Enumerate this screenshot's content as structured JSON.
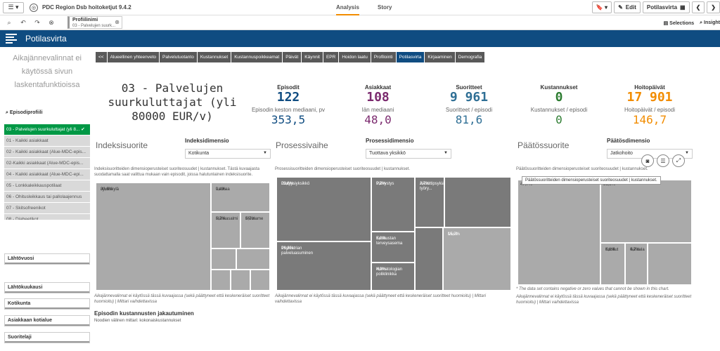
{
  "app": {
    "title": "PDC Region Dsb hoitoketjut 9.4.2"
  },
  "nav": {
    "analysis": "Analysis",
    "story": "Story"
  },
  "toolbar": {
    "edit": "Edit",
    "sheet": "Potilasvirta",
    "selections": "Selections",
    "insights": "Insight"
  },
  "selection_chip": {
    "title": "Profiilinimi",
    "value": "03 - Palvelujen suurk..."
  },
  "sheet_title": "Potilasvirta",
  "left": {
    "note": "Aikajännevalinnat ei käytössä sivun laskentafunktioissa",
    "filter_title": "Episodiprofiili",
    "filter_items": [
      "03 - Palvelujen suurkuluttajat (yli 8...",
      "01 - Kaikki asiakkaat",
      "02 - Kaikki asiakkaat (Alue-MDC-epis...",
      "02-Kaikki asiakkaat (Alue-MDC-epis...",
      "04 - Kaikki asiakkaat (Alue-MDC-epi...",
      "05 - Lonkkaleikkauspotilaat",
      "06 - Ohitusleikkaus tai pallolaajennus",
      "07 - Skitsofreenikot",
      "08 - Diabeetikot"
    ],
    "dropdowns": [
      "Lähtövuosi",
      "Lähtökuukausi",
      "Kotikunta",
      "Asiakkaan kotialue",
      "Suoritelaji"
    ]
  },
  "tabs": [
    "<<",
    "Alueellinen yhteenveto",
    "Palvelutuotanto",
    "Kustannukset",
    "Kustannuspoikkeamat",
    "Päivät",
    "Käynnit",
    "EPR",
    "Hoidon laatu",
    "Profilointi",
    "Potilasvirta",
    "Kirjaaminen",
    "Demografia"
  ],
  "active_tab": "Potilasvirta",
  "profile_title": "03 - Palvelujen suurkuluttajat (yli 80000 EUR/v)",
  "kpis": {
    "episodit": {
      "label": "Episodit",
      "value": "122",
      "color": "#0f4c81"
    },
    "asiakkaat": {
      "label": "Asiakkaat",
      "value": "108",
      "color": "#7b2a6e"
    },
    "suoritteet": {
      "label": "Suoritteet",
      "value": "9 961",
      "color": "#2f6f95"
    },
    "kustannukset": {
      "label": "Kustannukset",
      "value": "0",
      "color": "#2e7d32"
    },
    "hoitopaivat": {
      "label": "Hoitopäivät",
      "value": "17 901",
      "color": "#f28c00"
    },
    "mediaani_label": "Episodin keston mediaani, pv",
    "mediaani_value": "353,5",
    "ika_label": "Iän mediaani",
    "ika_value": "48,0",
    "suor_ep_label": "Suoritteet / episodi",
    "suor_ep_value": "81,6",
    "kust_ep_label": "Kustannukset / episodi",
    "kust_ep_value": "0",
    "hp_ep_label": "Hoitopäivät / episodi",
    "hp_ep_value": "146,7"
  },
  "sections": {
    "index": {
      "title": "Indeksisuorite",
      "dim_label": "Indeksidimensio",
      "dim_value": "Kotikunta",
      "desc": "Indeksisuoritteiden dimensioperusteiset suoriteosuudet | kustannukset. Tästä kuvaajasta suodattamalla saat valittua mukaan vain episodit, joissa halutunlainen indeksisuorite.",
      "note": "Aikajännevalinnat ei käytössä tässä kuvaajassa (sekä päättyneet että keskeneräiset suoritteet huomioitu) | Mittari vaihdettavissa"
    },
    "process": {
      "title": "Prosessivaihe",
      "dim_label": "Prosessidimensio",
      "dim_value": "Tuottava yksikkö",
      "desc": "Prosessisuoritteiden dimensioperusteiset suoriteosuudet | kustannukset.",
      "note": "Aikajännevalinnat ei käytössä tässä kuvaajassa (sekä päättyneet että keskeneräiset suoritteet huomioitu) | Mittari vaihdettavissa"
    },
    "end": {
      "title": "Päätössuorite",
      "dim_label": "Päätösdimensio",
      "dim_value": "Jatkohoito",
      "desc": "Päätössuoritteiden dimensioperusteiset suoriteosuudet | kustannukset.",
      "tooltip": "Päätössuoritteiden dimensioperusteiset suoriteosuudet | kustannukset.",
      "star_note": "* The data set contains negative or zero values that cannot be shown in this chart.",
      "note": "Aikajännevalinnat ei käytössä tässä kuvaajassa (sekä päättyneet että keskeneräiset suoritteet huomioitu) | Mittari vaihdettavissa"
    }
  },
  "treemap_index": [
    {
      "label": "Jyväskylä",
      "pct": "80,8%"
    },
    {
      "label": "Laukaa",
      "pct": "9,4%"
    },
    {
      "label": "Hankasalmi",
      "pct": "5,7%"
    },
    {
      "label": "Muurame",
      "pct": "5,7%"
    }
  ],
  "treemap_process": [
    {
      "label": "Dialyysiyksikkö",
      "pct": "23,6%"
    },
    {
      "label": "Psykiatrian palveluasuminen",
      "pct": "16,8%"
    },
    {
      "label": "Päivystys",
      "pct": "9,2%"
    },
    {
      "label": "Akuuttipsykiatrian työry...",
      "pct": "2,7%"
    },
    {
      "label": "Keskustan terveysasema",
      "pct": "5,0%"
    },
    {
      "label": "Hematologian poliklinikka",
      "pct": "4,3%"
    },
    {
      "label": "Muut",
      "pct": "15,7%"
    }
  ],
  "treemap_end": [
    {
      "label": "",
      "pct": "47,7%"
    },
    {
      "label": "",
      "pct": "31,8%"
    },
    {
      "label": "Kuollut",
      "pct": "6,6%"
    },
    {
      "label": "Saraala",
      "pct": "4,7%"
    }
  ],
  "bottom": {
    "title": "Episodin kustannusten jakautuminen",
    "sub": "Noodien välinen mittari: kokonaiskustannukset"
  },
  "colors": {
    "accent": "#0f4c81",
    "selected": "#009845",
    "tab": "#595959",
    "tm_light": "#aaaaaa",
    "tm_dark": "#7a7a7a"
  }
}
